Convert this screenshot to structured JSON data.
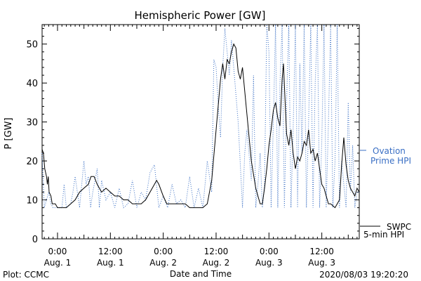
{
  "chart_data": {
    "type": "line",
    "title": "Hemispheric Power [GW]",
    "xlabel": "Date and Time",
    "ylabel": "P [GW]",
    "ylim": [
      0,
      55
    ],
    "xlim_hours": [
      -3.5,
      68.5
    ],
    "yticks": [
      0,
      10,
      20,
      30,
      40,
      50
    ],
    "xticks": [
      {
        "hour": 0,
        "time": "0:00",
        "date": "Aug. 1"
      },
      {
        "hour": 12,
        "time": "12:00",
        "date": "Aug. 1"
      },
      {
        "hour": 24,
        "time": "0:00",
        "date": "Aug. 2"
      },
      {
        "hour": 36,
        "time": "12:00",
        "date": "Aug. 2"
      },
      {
        "hour": 48,
        "time": "0:00",
        "date": "Aug. 3"
      },
      {
        "hour": 60,
        "time": "12:00",
        "date": "Aug. 3"
      }
    ],
    "legend_placement": "right",
    "series": [
      {
        "name": "SWPC 5-min HPI",
        "legend_lines": [
          "SWPC",
          "5-min HPI"
        ],
        "color": "#000000",
        "style": "solid",
        "points": [
          [
            -3.5,
            23
          ],
          [
            -3.2,
            22
          ],
          [
            -2.9,
            18
          ],
          [
            -2.5,
            16
          ],
          [
            -2.3,
            14
          ],
          [
            -2.1,
            16
          ],
          [
            -1.9,
            12
          ],
          [
            -1.5,
            11
          ],
          [
            -1.2,
            9
          ],
          [
            -0.5,
            9
          ],
          [
            0,
            8
          ],
          [
            2,
            8
          ],
          [
            3,
            9
          ],
          [
            4,
            10
          ],
          [
            5,
            12
          ],
          [
            6,
            13
          ],
          [
            7,
            14
          ],
          [
            7.6,
            16
          ],
          [
            8.3,
            16
          ],
          [
            9,
            14
          ],
          [
            10,
            12
          ],
          [
            11,
            13
          ],
          [
            12,
            12
          ],
          [
            13,
            11
          ],
          [
            14,
            11
          ],
          [
            15,
            10
          ],
          [
            16,
            10
          ],
          [
            17,
            9
          ],
          [
            18,
            9
          ],
          [
            19,
            9
          ],
          [
            20,
            10
          ],
          [
            21,
            12
          ],
          [
            22,
            14
          ],
          [
            22.5,
            15
          ],
          [
            23,
            14
          ],
          [
            24,
            11
          ],
          [
            24.8,
            9
          ],
          [
            26,
            9
          ],
          [
            27,
            9
          ],
          [
            28,
            9
          ],
          [
            29,
            9
          ],
          [
            30,
            8
          ],
          [
            33,
            8
          ],
          [
            34,
            9
          ],
          [
            35,
            15
          ],
          [
            36,
            28
          ],
          [
            37,
            41
          ],
          [
            37.5,
            45
          ],
          [
            38,
            41
          ],
          [
            38.5,
            46
          ],
          [
            39,
            45
          ],
          [
            39.5,
            48
          ],
          [
            40,
            50
          ],
          [
            40.5,
            49
          ],
          [
            41,
            43
          ],
          [
            41.5,
            41
          ],
          [
            42,
            44
          ],
          [
            43,
            32
          ],
          [
            44,
            20
          ],
          [
            45,
            13
          ],
          [
            45.5,
            11
          ],
          [
            46,
            9
          ],
          [
            46.5,
            9
          ],
          [
            47,
            13
          ],
          [
            47.5,
            18
          ],
          [
            48,
            24
          ],
          [
            48.5,
            28
          ],
          [
            49,
            33
          ],
          [
            49.5,
            35
          ],
          [
            50,
            31
          ],
          [
            50.5,
            29
          ],
          [
            51,
            41
          ],
          [
            51.3,
            45
          ],
          [
            51.6,
            37
          ],
          [
            52,
            27
          ],
          [
            52.5,
            24
          ],
          [
            53,
            28
          ],
          [
            53.5,
            22
          ],
          [
            54,
            18
          ],
          [
            54.5,
            21
          ],
          [
            55,
            20
          ],
          [
            55.5,
            22
          ],
          [
            56,
            25
          ],
          [
            56.5,
            24
          ],
          [
            57,
            28
          ],
          [
            57.5,
            22
          ],
          [
            58,
            23
          ],
          [
            58.5,
            20
          ],
          [
            59,
            22
          ],
          [
            59.5,
            18
          ],
          [
            60,
            14
          ],
          [
            60.5,
            13
          ],
          [
            61,
            11
          ],
          [
            61.5,
            9
          ],
          [
            62,
            9
          ],
          [
            63,
            8
          ],
          [
            63.5,
            9
          ],
          [
            64,
            10
          ],
          [
            64.5,
            19
          ],
          [
            65,
            26
          ],
          [
            65.5,
            19
          ],
          [
            66,
            15
          ],
          [
            66.5,
            13
          ],
          [
            67,
            12
          ],
          [
            67.5,
            11
          ],
          [
            68,
            13
          ],
          [
            68.5,
            12
          ]
        ]
      },
      {
        "name": "Ovation Prime HPI",
        "legend_lines": [
          "Ovation",
          "Prime HPI"
        ],
        "color": "#3a6fc4",
        "style": "dotted",
        "points": [
          [
            -3.5,
            22
          ],
          [
            -3,
            8
          ],
          [
            -2,
            12
          ],
          [
            -1.5,
            9
          ],
          [
            -1,
            8
          ],
          [
            0,
            8
          ],
          [
            1,
            8
          ],
          [
            1.5,
            14
          ],
          [
            2,
            8
          ],
          [
            3,
            9
          ],
          [
            3.5,
            12
          ],
          [
            4,
            16
          ],
          [
            5,
            8
          ],
          [
            6,
            20
          ],
          [
            6.5,
            14
          ],
          [
            7,
            16
          ],
          [
            7.5,
            8
          ],
          [
            8,
            12
          ],
          [
            9,
            18
          ],
          [
            9.5,
            8
          ],
          [
            10,
            15
          ],
          [
            11,
            10
          ],
          [
            12,
            12
          ],
          [
            13,
            8
          ],
          [
            14,
            13
          ],
          [
            15,
            8
          ],
          [
            16,
            9
          ],
          [
            17,
            15
          ],
          [
            18,
            8
          ],
          [
            19,
            12
          ],
          [
            20,
            10
          ],
          [
            21,
            17
          ],
          [
            22,
            19
          ],
          [
            23,
            8
          ],
          [
            24,
            11
          ],
          [
            25,
            8
          ],
          [
            26,
            14
          ],
          [
            27,
            9
          ],
          [
            28,
            10
          ],
          [
            29,
            8
          ],
          [
            30,
            16
          ],
          [
            31,
            8
          ],
          [
            32,
            13
          ],
          [
            33,
            8
          ],
          [
            34,
            20
          ],
          [
            35,
            12
          ],
          [
            35.5,
            46
          ],
          [
            36,
            44
          ],
          [
            36.5,
            34
          ],
          [
            37,
            26
          ],
          [
            37.5,
            44
          ],
          [
            38,
            54
          ],
          [
            38.5,
            48
          ],
          [
            39,
            42
          ],
          [
            39.5,
            51
          ],
          [
            40,
            44
          ],
          [
            41,
            30
          ],
          [
            42,
            8
          ],
          [
            42.5,
            22
          ],
          [
            43,
            28
          ],
          [
            44,
            15
          ],
          [
            44.5,
            42
          ],
          [
            45,
            8
          ],
          [
            45.5,
            14
          ],
          [
            46,
            22
          ],
          [
            46.5,
            8
          ],
          [
            47,
            14
          ],
          [
            47.5,
            55
          ],
          [
            48,
            48
          ],
          [
            48.5,
            8
          ],
          [
            49,
            30
          ],
          [
            49.5,
            55
          ],
          [
            50,
            8
          ],
          [
            50.5,
            40
          ],
          [
            51,
            55
          ],
          [
            51.5,
            8
          ],
          [
            52,
            35
          ],
          [
            52.5,
            55
          ],
          [
            53,
            8
          ],
          [
            53.5,
            28
          ],
          [
            54,
            55
          ],
          [
            54.5,
            8
          ],
          [
            55,
            45
          ],
          [
            55.5,
            22
          ],
          [
            56,
            55
          ],
          [
            56.5,
            8
          ],
          [
            57,
            30
          ],
          [
            57.5,
            55
          ],
          [
            58,
            8
          ],
          [
            58.5,
            40
          ],
          [
            59,
            55
          ],
          [
            59.5,
            8
          ],
          [
            60,
            25
          ],
          [
            60.5,
            55
          ],
          [
            61,
            8
          ],
          [
            61.5,
            30
          ],
          [
            62,
            55
          ],
          [
            62.5,
            8
          ],
          [
            63,
            20
          ],
          [
            63.5,
            55
          ],
          [
            64,
            8
          ],
          [
            64.5,
            20
          ],
          [
            65,
            14
          ],
          [
            65.5,
            8
          ],
          [
            66,
            35
          ],
          [
            66.5,
            12
          ],
          [
            67,
            24
          ],
          [
            67.5,
            8
          ],
          [
            68,
            12
          ],
          [
            68.5,
            12
          ]
        ]
      }
    ]
  },
  "footer": {
    "plot_credit": "Plot: CCMC",
    "timestamp": "2020/08/03 19:20:20"
  }
}
